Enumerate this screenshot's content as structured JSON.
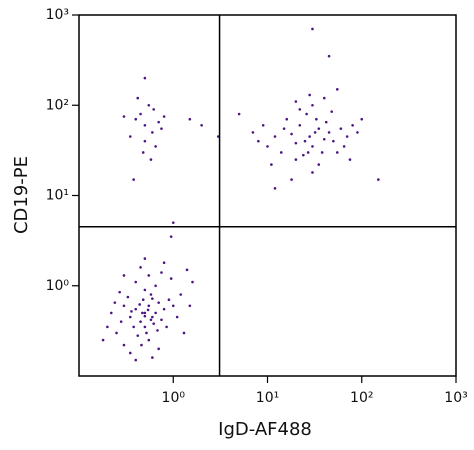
{
  "chart_data": {
    "type": "scatter",
    "x_label": "IgD-AF488",
    "y_label": "CD19-PE",
    "xscale": "log",
    "yscale": "log",
    "xlim": [
      0.1,
      1000
    ],
    "ylim": [
      0.1,
      1000
    ],
    "xticks": [
      {
        "value": 1,
        "label": "10⁰"
      },
      {
        "value": 10,
        "label": "10¹"
      },
      {
        "value": 100,
        "label": "10²"
      },
      {
        "value": 1000,
        "label": "10³"
      }
    ],
    "yticks": [
      {
        "value": 1,
        "label": "10⁰"
      },
      {
        "value": 10,
        "label": "10¹"
      },
      {
        "value": 100,
        "label": "10²"
      },
      {
        "value": 1000,
        "label": "10³"
      }
    ],
    "quadrant": {
      "x": 3.1,
      "y": 4.5
    },
    "series": [
      {
        "color": "#4b1582",
        "x": [
          0.5,
          0.45,
          0.55,
          0.6,
          0.4,
          0.5,
          0.35,
          0.65,
          0.48,
          0.52,
          0.3,
          0.7,
          0.42,
          0.58,
          0.38,
          0.62,
          0.5,
          0.46,
          0.75,
          0.33,
          0.28,
          0.8,
          0.55,
          0.44,
          0.6,
          0.36,
          0.68,
          0.5,
          0.54,
          0.47,
          0.25,
          0.9,
          0.4,
          0.65,
          0.3,
          0.85,
          0.22,
          1.0,
          0.55,
          0.7,
          0.2,
          1.2,
          0.35,
          0.95,
          0.6,
          1.4,
          0.45,
          0.27,
          1.1,
          0.75,
          0.18,
          1.6,
          0.5,
          0.4,
          1.3,
          0.3,
          0.8,
          1.5,
          0.24,
          0.58,
          28,
          25,
          32,
          20,
          35,
          30,
          22,
          40,
          18,
          27,
          45,
          15,
          33,
          24,
          50,
          12,
          38,
          26,
          60,
          10,
          20,
          42,
          16,
          55,
          30,
          14,
          70,
          35,
          9,
          22,
          80,
          48,
          11,
          65,
          18,
          30,
          90,
          8,
          28,
          40,
          100,
          20,
          55,
          12,
          75,
          0.5,
          0.45,
          0.6,
          0.4,
          0.55,
          0.35,
          0.7,
          0.5,
          0.62,
          0.3,
          0.48,
          0.75,
          0.42,
          0.58,
          0.5,
          0.65,
          0.38,
          0.8,
          2,
          3,
          5,
          1.5,
          7,
          1,
          0.95,
          30,
          45,
          150
        ],
        "y": [
          0.5,
          0.4,
          0.6,
          0.45,
          0.55,
          0.35,
          0.45,
          0.5,
          0.7,
          0.3,
          0.6,
          0.65,
          0.28,
          0.8,
          0.35,
          0.38,
          0.9,
          0.22,
          0.42,
          0.75,
          0.4,
          0.55,
          0.25,
          0.62,
          0.72,
          0.52,
          0.32,
          0.46,
          0.54,
          0.5,
          0.3,
          0.7,
          1.1,
          1.0,
          0.22,
          0.35,
          0.5,
          0.6,
          1.3,
          0.2,
          0.35,
          0.8,
          0.18,
          1.2,
          0.16,
          1.5,
          1.6,
          0.85,
          0.45,
          1.4,
          0.25,
          1.1,
          2.0,
          0.15,
          0.3,
          1.3,
          1.8,
          0.6,
          0.65,
          0.42,
          45,
          40,
          50,
          38,
          55,
          35,
          60,
          42,
          48,
          30,
          50,
          55,
          70,
          28,
          40,
          45,
          30,
          80,
          55,
          35,
          25,
          65,
          70,
          30,
          100,
          30,
          45,
          22,
          60,
          90,
          60,
          85,
          22,
          35,
          15,
          18,
          50,
          40,
          130,
          120,
          70,
          110,
          150,
          12,
          25,
          60,
          80,
          50,
          70,
          100,
          45,
          65,
          40,
          90,
          75,
          30,
          55,
          120,
          25,
          200,
          35,
          15,
          75,
          60,
          45,
          80,
          70,
          50,
          5,
          3.5,
          700,
          350,
          15
        ]
      }
    ]
  }
}
